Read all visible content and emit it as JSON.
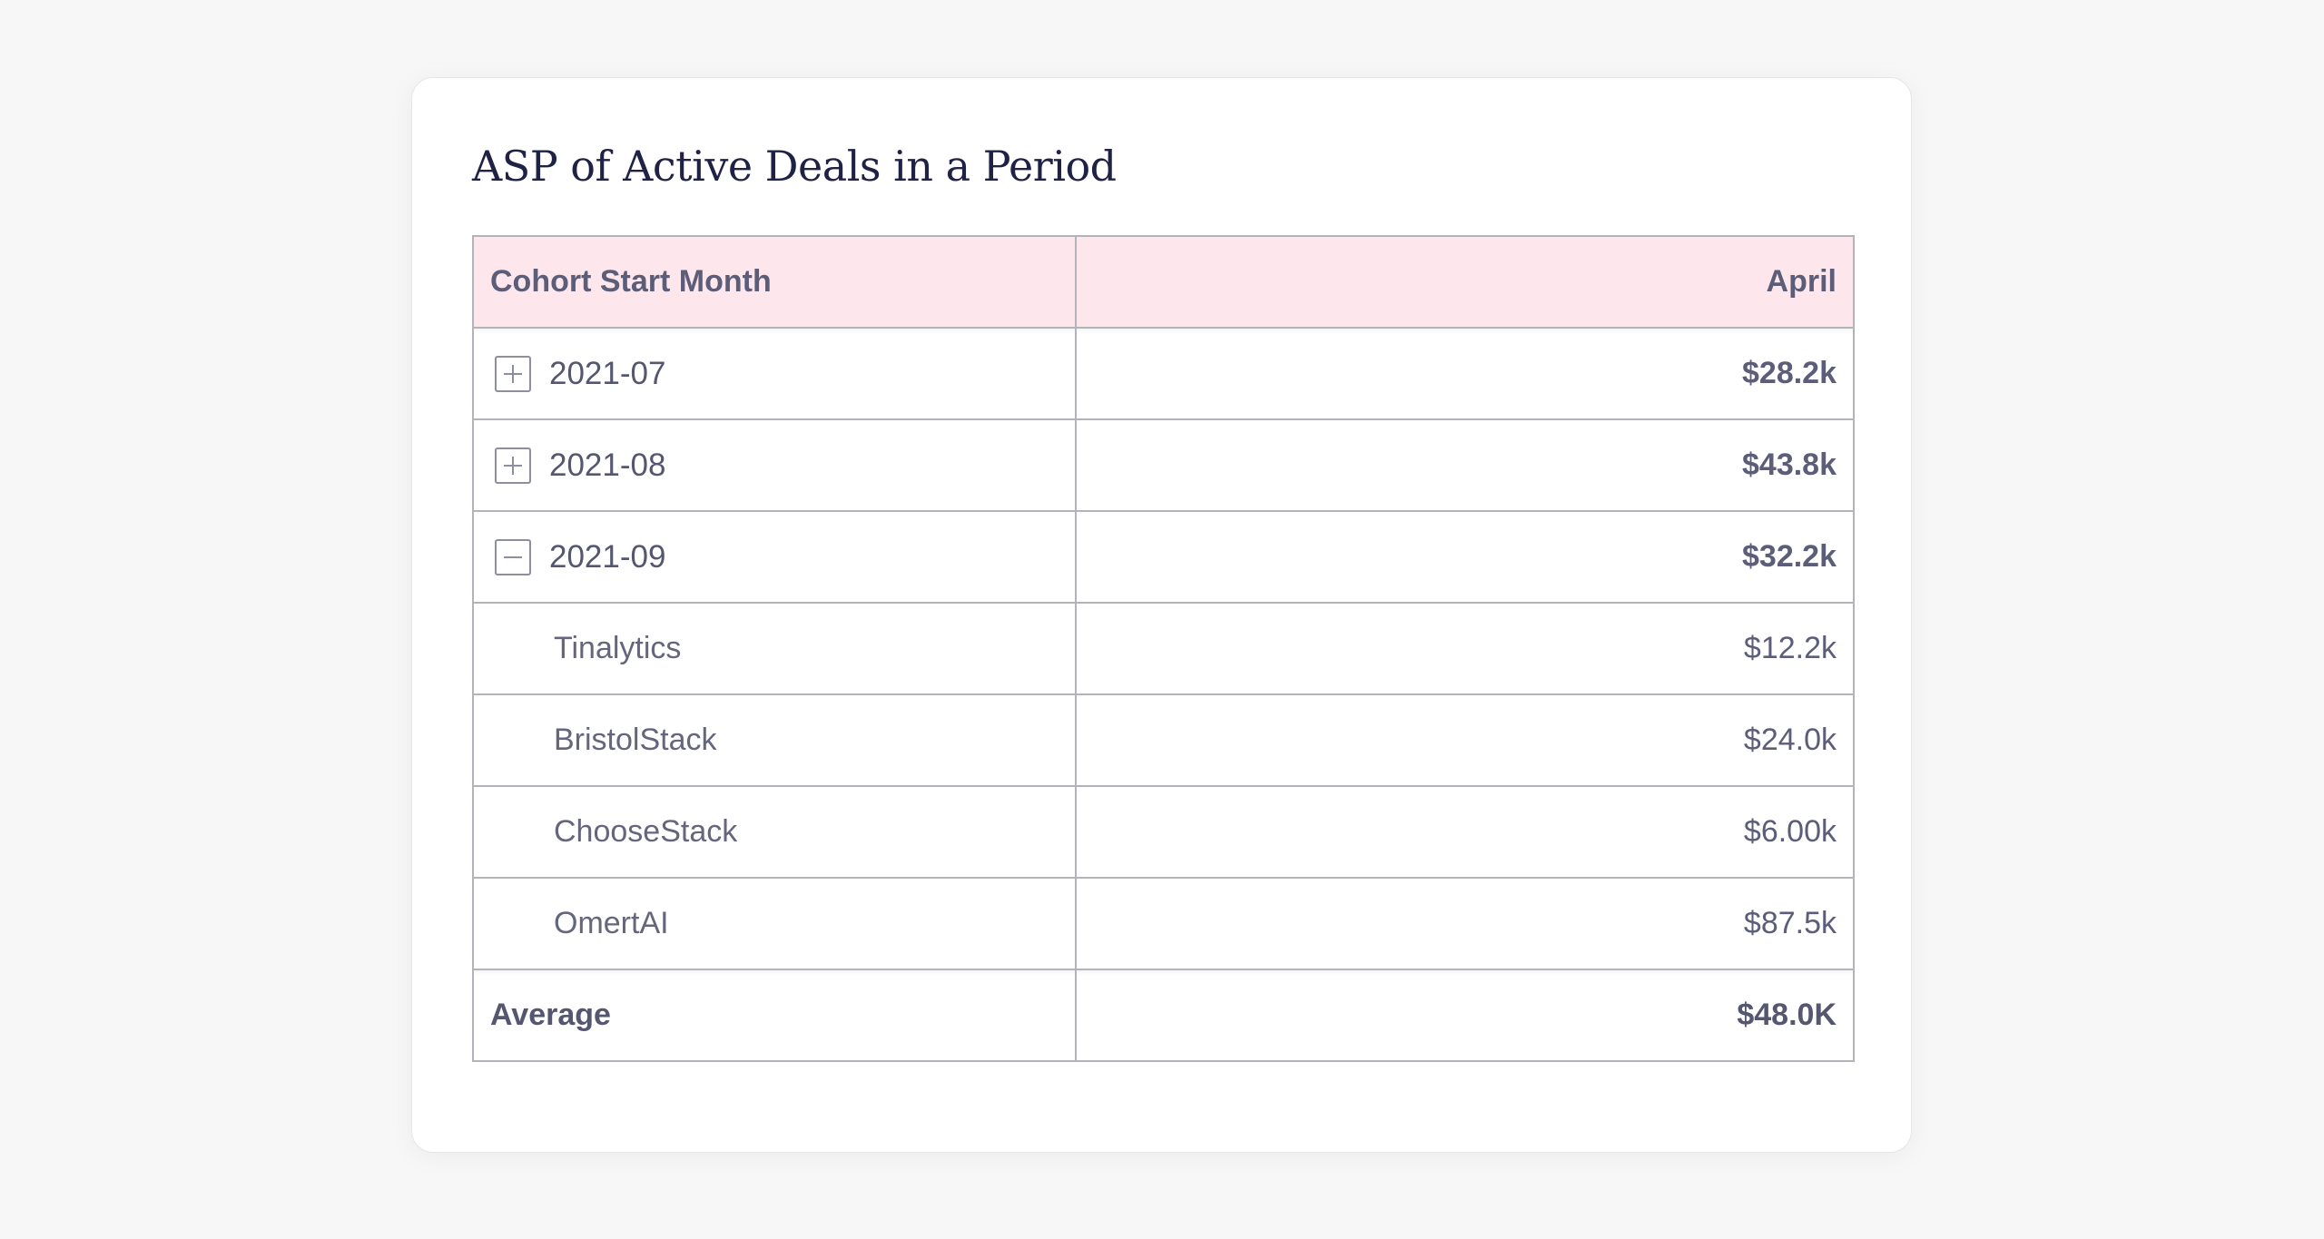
{
  "title": "ASP of Active Deals in a Period",
  "table": {
    "headers": [
      "Cohort Start Month",
      "April"
    ],
    "rows": [
      {
        "label": "2021-07",
        "value": "$28.2k",
        "toggle": "plus-icon"
      },
      {
        "label": "2021-08",
        "value": "$43.8k",
        "toggle": "plus-icon"
      },
      {
        "label": "2021-09",
        "value": "$32.2k",
        "toggle": "minus-icon"
      },
      {
        "label": "Tinalytics",
        "value": "$12.2k"
      },
      {
        "label": "BristolStack",
        "value": "$24.0k"
      },
      {
        "label": "ChooseStack",
        "value": "$6.00k"
      },
      {
        "label": "OmertAI",
        "value": "$87.5k"
      }
    ],
    "footer": {
      "label": "Average",
      "value": "$48.0K"
    }
  },
  "colors": {
    "header_bg": "#fde6ec",
    "title": "#1f2245",
    "text": "#55566f",
    "border": "#b3b3ba"
  }
}
